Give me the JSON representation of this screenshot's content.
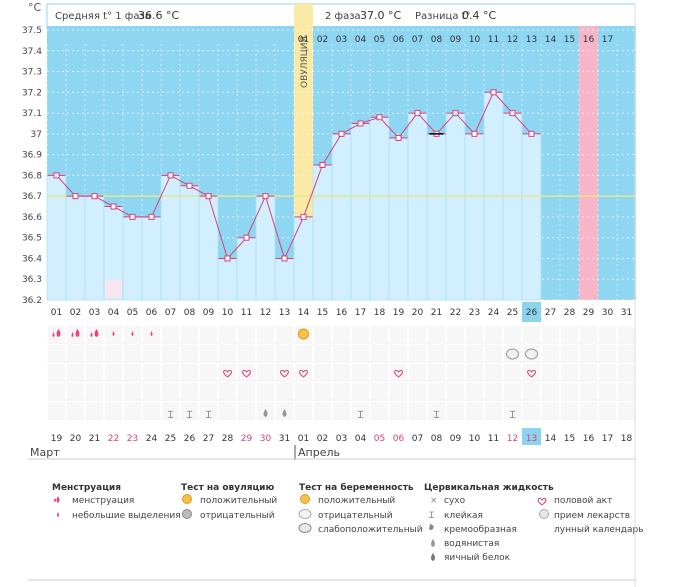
{
  "unit_label": "°C",
  "phase1_label": "Средняя t° 1 фаза",
  "phase1_value": "36.6 °C",
  "phase2_label": "2 фаза",
  "phase2_value": "37.0 °C",
  "diff_label": "Разница t°",
  "diff_value": "0.4 °C",
  "ovulation_label": "ОВУЛЯЦИЯ",
  "month1": "Март",
  "month2": "Апрель",
  "colors": {
    "chart_bg": "#8fd6f2",
    "bar_fill": "#d2efff",
    "bar_stroke": "#a6dbf3",
    "line": "#d9417a",
    "ovulation": "#fbeaa6",
    "pink_col": "#f7b6c8",
    "today": "#8cd3ef",
    "weekend": "#d9417a",
    "coverline": "#e2e88a"
  },
  "chart_data": {
    "type": "bar",
    "ylim": [
      36.2,
      37.5
    ],
    "y_ticks": [
      "37.5",
      "37.4",
      "37.3",
      "37.2",
      "37.1",
      "37",
      "36.9",
      "36.8",
      "36.7",
      "36.6",
      "36.5",
      "36.4",
      "36.3",
      "36.2"
    ],
    "categories": [
      "01",
      "02",
      "03",
      "04",
      "05",
      "06",
      "07",
      "08",
      "09",
      "10",
      "11",
      "12",
      "13",
      "14",
      "15",
      "16",
      "17",
      "18",
      "19",
      "20",
      "21",
      "22",
      "23",
      "24",
      "25",
      "26",
      "27",
      "28",
      "29",
      "30",
      "31"
    ],
    "values": [
      36.8,
      36.7,
      36.7,
      36.65,
      36.6,
      36.6,
      36.8,
      36.75,
      36.7,
      36.4,
      36.5,
      36.7,
      36.4,
      36.6,
      36.85,
      37.0,
      37.05,
      37.08,
      36.98,
      37.1,
      37.0,
      37.1,
      37.0,
      37.2,
      37.1,
      37.0,
      null,
      null,
      null,
      null,
      null
    ],
    "cycle_day_top": [
      "01",
      "02",
      "03",
      "04",
      "05",
      "06",
      "07",
      "08",
      "09",
      "10",
      "11",
      "12",
      "13",
      "14",
      "15",
      "16",
      "17"
    ],
    "date_row": [
      "19",
      "20",
      "21",
      "22",
      "23",
      "24",
      "25",
      "26",
      "27",
      "28",
      "29",
      "30",
      "31",
      "01",
      "02",
      "03",
      "04",
      "05",
      "06",
      "07",
      "08",
      "09",
      "10",
      "11",
      "12",
      "13",
      "14",
      "15",
      "16",
      "17",
      "18"
    ],
    "weekend_dates": [
      4,
      5,
      11,
      12,
      18,
      19,
      25,
      26
    ],
    "coverline": 36.7,
    "ovulation_day": 14,
    "today_day": 26,
    "pink_day": 29,
    "menstruation": {
      "large": [
        1,
        2,
        3
      ],
      "small": [
        4,
        5,
        6
      ]
    },
    "ovulation_test_positive": [
      14
    ],
    "pregnancy_test": [
      25,
      26
    ],
    "intercourse": [
      10,
      11,
      13,
      14,
      19,
      26
    ],
    "cervical_sticky": [
      7,
      8,
      9,
      17,
      21,
      25
    ],
    "cervical_water": [
      12,
      13
    ],
    "lunar": [
      4
    ],
    "cross_marker_day": 21
  },
  "legend": {
    "menstruation": {
      "title": "Менструация",
      "items": [
        "менструация",
        "небольшие выделения"
      ]
    },
    "ovulation_test": {
      "title": "Тест на овуляцию",
      "items": [
        "положительный",
        "отрицательный"
      ]
    },
    "pregnancy_test": {
      "title": "Тест на беременность",
      "items": [
        "положительный",
        "отрицательный",
        "слабоположительный"
      ]
    },
    "cervical": {
      "title": "Цервикальная жидкость",
      "items": [
        "сухо",
        "клейкая",
        "кремообразная",
        "водянистая",
        "яичный белок"
      ]
    },
    "other": {
      "items": [
        "половой акт",
        "прием лекарств",
        "лунный календарь"
      ]
    }
  }
}
